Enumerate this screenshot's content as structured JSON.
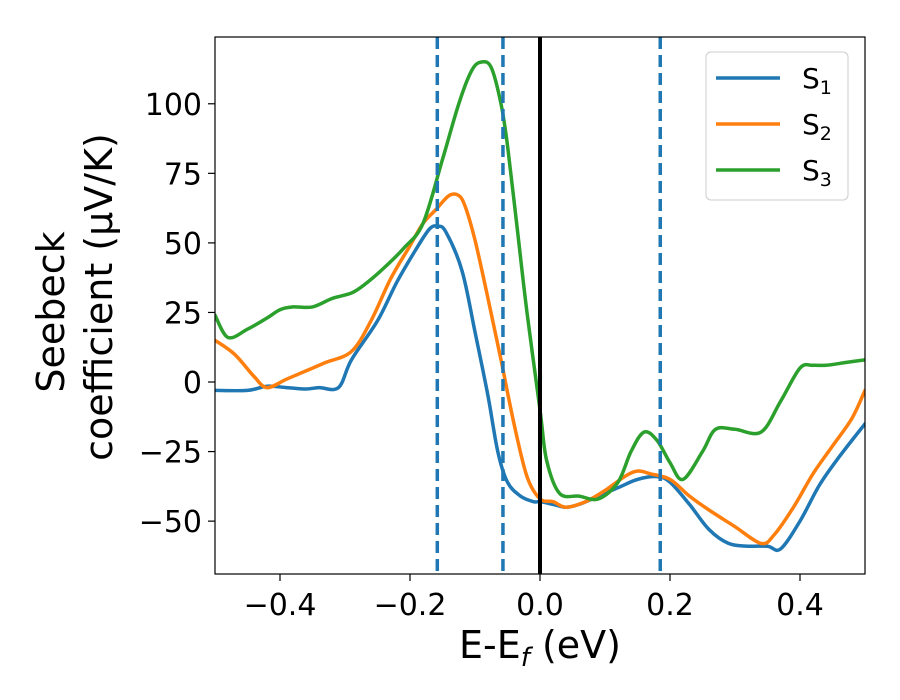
{
  "chart_data": {
    "type": "line",
    "xlabel_main": "E-E",
    "xlabel_sub": "f",
    "xlabel_unit": " (eV)",
    "ylabel_line1": "Seebeck",
    "ylabel_line2": "coefficient  (μV/K)",
    "xlim": [
      -0.5,
      0.5
    ],
    "ylim": [
      -69,
      124
    ],
    "xticks": [
      -0.4,
      -0.2,
      0.0,
      0.2,
      0.4
    ],
    "xtick_labels": [
      "−0.4",
      "−0.2",
      "0.0",
      "0.2",
      "0.4"
    ],
    "yticks": [
      -50,
      -25,
      0,
      25,
      50,
      75,
      100
    ],
    "ytick_labels": [
      "−50",
      "−25",
      "0",
      "25",
      "50",
      "75",
      "100"
    ],
    "grid": false,
    "legend_position": "top-right",
    "vlines_dashed": [
      -0.158,
      -0.057,
      0.185
    ],
    "vline_solid": 0.0,
    "dashed_color": "#1f77b4",
    "solid_color": "#000000",
    "series": [
      {
        "name": "S",
        "sub": "1",
        "color": "#1f77b4",
        "x": [
          -0.5,
          -0.45,
          -0.42,
          -0.39,
          -0.36,
          -0.34,
          -0.31,
          -0.29,
          -0.25,
          -0.22,
          -0.19,
          -0.17,
          -0.158,
          -0.145,
          -0.12,
          -0.1,
          -0.08,
          -0.065,
          -0.05,
          -0.03,
          -0.01,
          0.0,
          0.02,
          0.04,
          0.06,
          0.09,
          0.12,
          0.15,
          0.18,
          0.2,
          0.23,
          0.26,
          0.29,
          0.32,
          0.35,
          0.37,
          0.4,
          0.43,
          0.46,
          0.5
        ],
        "y": [
          -3,
          -3,
          -1.5,
          -2,
          -2.5,
          -2,
          -2,
          8,
          22,
          36,
          48,
          55,
          56,
          54,
          40,
          18,
          -5,
          -25,
          -36,
          -41,
          -43,
          -43,
          -44,
          -45,
          -44,
          -41,
          -38,
          -35,
          -34,
          -36,
          -44,
          -53,
          -58,
          -59,
          -59,
          -60,
          -50,
          -37,
          -27,
          -15
        ]
      },
      {
        "name": "S",
        "sub": "2",
        "color": "#ff7f0e",
        "x": [
          -0.5,
          -0.47,
          -0.44,
          -0.42,
          -0.39,
          -0.36,
          -0.33,
          -0.29,
          -0.26,
          -0.23,
          -0.2,
          -0.18,
          -0.16,
          -0.14,
          -0.125,
          -0.115,
          -0.1,
          -0.08,
          -0.06,
          -0.04,
          -0.02,
          0.0,
          0.02,
          0.04,
          0.07,
          0.1,
          0.13,
          0.15,
          0.17,
          0.2,
          0.23,
          0.26,
          0.3,
          0.34,
          0.36,
          0.39,
          0.42,
          0.45,
          0.48,
          0.5
        ],
        "y": [
          15,
          10,
          2,
          -2,
          1,
          4,
          7,
          11,
          22,
          37,
          49,
          57,
          62,
          67,
          67,
          63,
          51,
          30,
          8,
          -15,
          -34,
          -42,
          -43,
          -45,
          -43,
          -39,
          -34,
          -32,
          -33,
          -35,
          -41,
          -46,
          -52,
          -58,
          -55,
          -45,
          -33,
          -23,
          -13,
          -3
        ]
      },
      {
        "name": "S",
        "sub": "3",
        "color": "#2ca02c",
        "x": [
          -0.5,
          -0.48,
          -0.45,
          -0.42,
          -0.4,
          -0.38,
          -0.35,
          -0.32,
          -0.29,
          -0.27,
          -0.24,
          -0.21,
          -0.18,
          -0.15,
          -0.125,
          -0.105,
          -0.09,
          -0.075,
          -0.06,
          -0.05,
          -0.035,
          -0.02,
          0.0,
          0.01,
          0.03,
          0.06,
          0.09,
          0.12,
          0.14,
          0.16,
          0.18,
          0.2,
          0.22,
          0.25,
          0.27,
          0.3,
          0.34,
          0.37,
          0.4,
          0.42,
          0.44,
          0.47,
          0.5
        ],
        "y": [
          24,
          16,
          19,
          23,
          26,
          27,
          27,
          30,
          32,
          35,
          41,
          48,
          57,
          80,
          100,
          112,
          115,
          113,
          100,
          85,
          55,
          25,
          -10,
          -28,
          -40,
          -41,
          -42,
          -36,
          -25,
          -18,
          -21,
          -29,
          -35,
          -25,
          -17,
          -17,
          -18,
          -7,
          5,
          6,
          6,
          7,
          8
        ]
      }
    ]
  }
}
